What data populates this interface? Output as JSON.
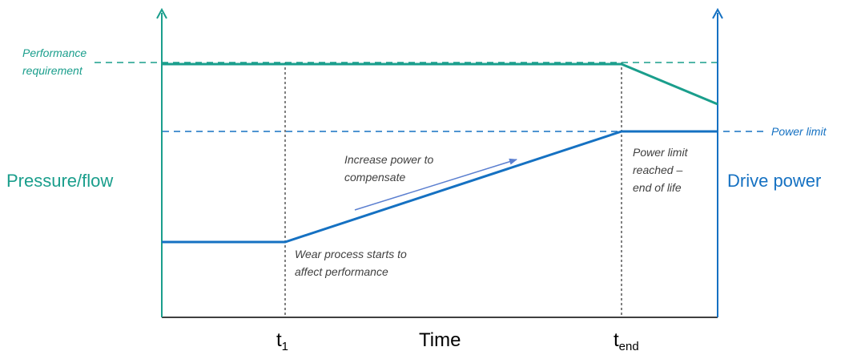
{
  "colors": {
    "teal": "#1a9e8c",
    "blue": "#1571c2",
    "annotation_arrow": "#5b7fd0",
    "text": "#404040",
    "axis": "#000000"
  },
  "labels": {
    "performance_requirement_line1": "Performance",
    "performance_requirement_line2": "requirement",
    "power_limit": "Power limit",
    "left_axis": "Pressure/flow",
    "right_axis": "Drive power",
    "x_axis": "Time",
    "t1_base": "t",
    "t1_sub": "1",
    "tend_base": "t",
    "tend_sub": "end",
    "increase_line1": "Increase power to",
    "increase_line2": "compensate",
    "wear_line1": "Wear process starts to",
    "wear_line2": "affect performance",
    "limit_line1": "Power limit",
    "limit_line2": "reached –",
    "limit_line3": "end of life"
  },
  "icons": {
    "left_axis_arrow": "arrow-up-icon",
    "right_axis_arrow": "arrow-up-icon",
    "annotation_arrow": "arrow-right-icon"
  }
}
